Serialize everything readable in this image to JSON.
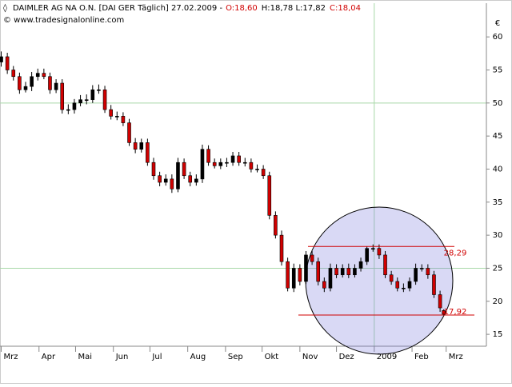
{
  "chart_data": {
    "type": "candlestick",
    "title": "DAIMLER AG NA O.N. [DAI GER  Täglich] 27.02.2009 -",
    "quote": [
      {
        "text": "O:18,60",
        "color": "#d00000"
      },
      {
        "text": "H:18,78 L:17,82",
        "color": "#000000"
      },
      {
        "text": "C:18,04",
        "color": "#d00000"
      }
    ],
    "source": "© www.tradesignalonline.com",
    "currency": "€",
    "x": [
      0,
      5,
      10,
      15,
      20,
      25,
      30,
      35,
      40,
      45,
      50,
      55,
      60,
      65,
      70,
      75,
      80,
      85,
      90,
      95,
      100,
      105,
      110,
      115,
      120,
      125,
      130,
      135,
      140,
      145,
      150,
      155,
      160,
      165,
      170,
      175,
      180,
      185,
      190,
      195,
      200,
      205,
      210,
      215,
      220,
      225,
      230,
      235,
      240,
      245,
      250,
      255,
      260,
      265,
      270,
      275,
      280,
      285,
      290,
      295,
      300,
      305,
      310,
      315,
      320,
      325,
      330,
      335,
      340,
      345,
      350,
      355,
      360,
      363
    ],
    "open": [
      56.2,
      57,
      55,
      54,
      52,
      52.5,
      54,
      54.5,
      54,
      52,
      53,
      49,
      49,
      50,
      50.5,
      50.5,
      52,
      52,
      49,
      48,
      48,
      47,
      44,
      43,
      44,
      41,
      39,
      38,
      38.5,
      37,
      41,
      39,
      38,
      38.5,
      43,
      41,
      40.5,
      41,
      41,
      42,
      41,
      41,
      40,
      40,
      39,
      33,
      30,
      26,
      22,
      25,
      23,
      27,
      26,
      23,
      22,
      25,
      24,
      25,
      24,
      25,
      26,
      28,
      28,
      27,
      24,
      23,
      22,
      22,
      23,
      25,
      25,
      24,
      21,
      18.6
    ],
    "high": [
      57.8,
      57.6,
      55.6,
      54.6,
      53.2,
      54.7,
      55.2,
      55.2,
      54.6,
      53.6,
      53.6,
      49.8,
      50.6,
      51.2,
      51.3,
      52.7,
      52.8,
      52.6,
      49.7,
      48.7,
      48.6,
      47.6,
      44.7,
      44.6,
      44.6,
      41.7,
      39.6,
      39.2,
      39.2,
      41.7,
      41.6,
      39.6,
      39.2,
      43.7,
      43.6,
      41.6,
      41.6,
      41.7,
      42.6,
      42.6,
      41.7,
      41.6,
      40.7,
      40.6,
      39.6,
      33.6,
      30.7,
      26.6,
      25.7,
      25.6,
      27.6,
      27.6,
      26.6,
      23.6,
      25.7,
      25.6,
      25.6,
      25.7,
      25.6,
      26.6,
      28.3,
      28.6,
      28.6,
      27.6,
      24.6,
      23.6,
      22.7,
      23.6,
      25.7,
      25.6,
      25.6,
      24.6,
      21.6,
      18.78
    ],
    "low": [
      55.5,
      54.4,
      53.4,
      51.4,
      51.6,
      51.8,
      53.4,
      53.6,
      51.4,
      51.5,
      48.4,
      48.3,
      48.4,
      49.5,
      49.8,
      50,
      51.4,
      48.5,
      47.5,
      47.4,
      46.5,
      43.5,
      42.4,
      42.5,
      40.5,
      38.4,
      37.4,
      37.5,
      36.4,
      36.5,
      38.5,
      37.4,
      37.5,
      37.9,
      40.5,
      40.1,
      40,
      40.3,
      40.5,
      40.5,
      40.4,
      39.5,
      39.5,
      38.5,
      32.4,
      29.5,
      25.4,
      21.5,
      21.4,
      22.4,
      22.6,
      25.5,
      22.4,
      21.4,
      21.5,
      23.5,
      23.6,
      23.5,
      23.6,
      24.5,
      25.5,
      27.5,
      26.4,
      23.5,
      22.5,
      21.5,
      21.4,
      21.5,
      22.5,
      24.5,
      23.4,
      20.5,
      18.4,
      17.82
    ],
    "close": [
      57,
      55,
      54,
      52,
      52.5,
      54,
      54.5,
      54,
      52,
      53,
      49,
      49,
      50,
      50.5,
      50.5,
      52,
      52,
      49,
      48,
      48,
      47,
      44,
      43,
      44,
      41,
      39,
      38,
      38.5,
      37,
      41,
      39,
      38,
      38.5,
      43,
      41,
      40.5,
      41,
      41,
      42,
      41,
      41,
      40,
      40,
      39,
      33,
      30,
      26,
      22,
      25,
      23,
      27,
      26,
      23,
      22,
      25,
      24,
      25,
      24,
      25,
      26,
      28,
      28,
      27,
      24,
      23,
      22,
      22,
      23,
      25,
      25,
      24,
      21,
      19,
      18.04
    ],
    "up_color": "#000000",
    "down_color": "#d00000",
    "xlim": [
      -1,
      398
    ],
    "ylim": [
      13.2,
      65.1
    ],
    "xticks": [
      {
        "value": 0,
        "label": "Mrz"
      },
      {
        "value": 31,
        "label": "Apr"
      },
      {
        "value": 61,
        "label": "Mai"
      },
      {
        "value": 92,
        "label": "Jun"
      },
      {
        "value": 122,
        "label": "Jul"
      },
      {
        "value": 153,
        "label": "Aug"
      },
      {
        "value": 184,
        "label": "Sep"
      },
      {
        "value": 214,
        "label": "Okt"
      },
      {
        "value": 245,
        "label": "Nov"
      },
      {
        "value": 275,
        "label": "Dez"
      },
      {
        "value": 306,
        "label": "2009"
      },
      {
        "value": 337,
        "label": "Feb"
      },
      {
        "value": 365,
        "label": "Mrz"
      }
    ],
    "yticks": [
      15,
      20,
      25,
      30,
      35,
      40,
      45,
      50,
      55,
      60
    ],
    "grid": {
      "x": [
        306
      ],
      "y": [
        25,
        50
      ]
    },
    "annotations": [
      {
        "value": 28.29,
        "label": "28,29"
      },
      {
        "value": 17.92,
        "label": "17,92"
      }
    ]
  }
}
